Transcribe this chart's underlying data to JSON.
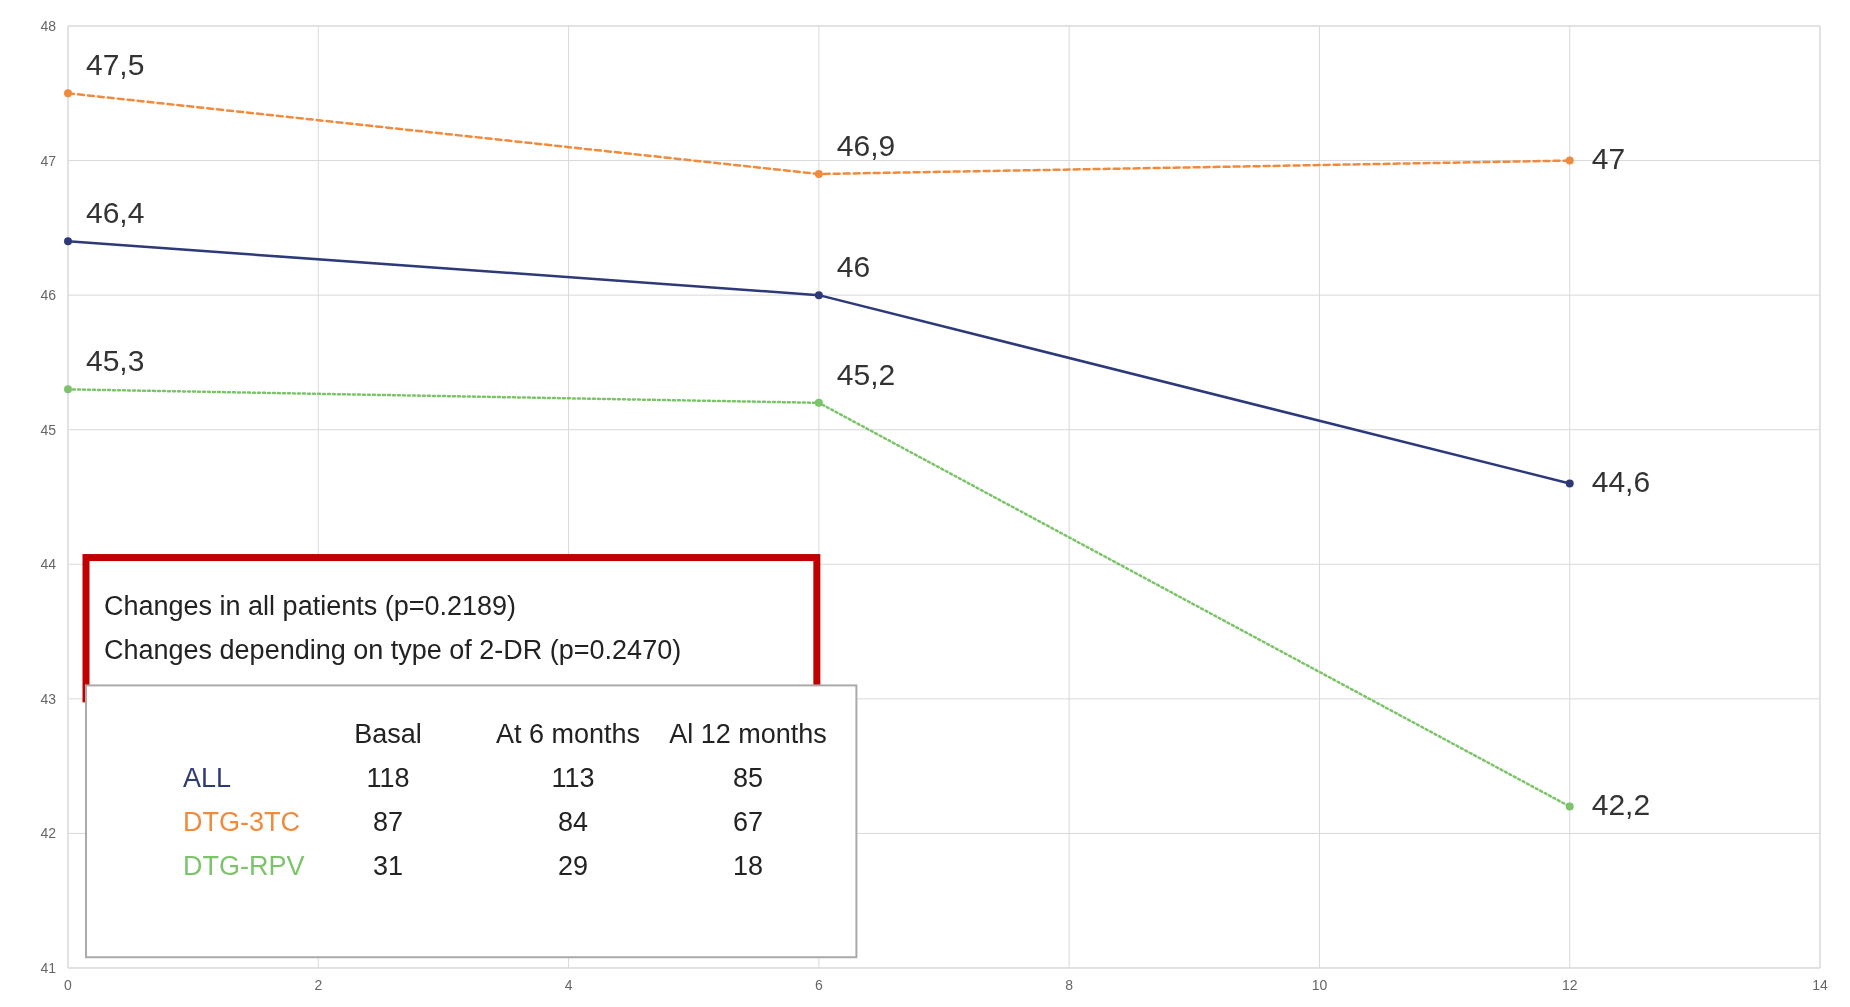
{
  "chart_data": {
    "type": "line",
    "x": [
      0,
      6,
      12
    ],
    "series": [
      {
        "name": "ALL",
        "color": "#2e3a78",
        "values": [
          46.4,
          46,
          44.6
        ],
        "value_labels": [
          "46,4",
          "46",
          "44,6"
        ],
        "line_style": "solid"
      },
      {
        "name": "DTG-3TC",
        "color": "#f08a3c",
        "values": [
          47.5,
          46.9,
          47
        ],
        "value_labels": [
          "47,5",
          "46,9",
          "47"
        ],
        "line_style": "dashed"
      },
      {
        "name": "DTG-RPV",
        "color": "#7cc46a",
        "values": [
          45.3,
          45.2,
          42.2
        ],
        "value_labels": [
          "45,3",
          "45,2",
          "42,2"
        ],
        "line_style": "dotted"
      }
    ],
    "xlim": [
      0,
      14
    ],
    "xticks": [
      0,
      2,
      4,
      6,
      8,
      10,
      12,
      14
    ],
    "ylim": [
      41,
      48
    ],
    "yticks": [
      41,
      42,
      43,
      44,
      45,
      46,
      47,
      48
    ],
    "grid": true,
    "marker": "circle",
    "legend": "bottom left",
    "annotations": [
      "Changes in all patients (p=0.2189)",
      "Changes depending on type of 2-DR (p=0.2470)",
      "Basal",
      "At 6 months",
      "Al 12 months",
      "118",
      "113",
      "85",
      "87",
      "84",
      "67",
      "31",
      "29",
      "18"
    ]
  }
}
